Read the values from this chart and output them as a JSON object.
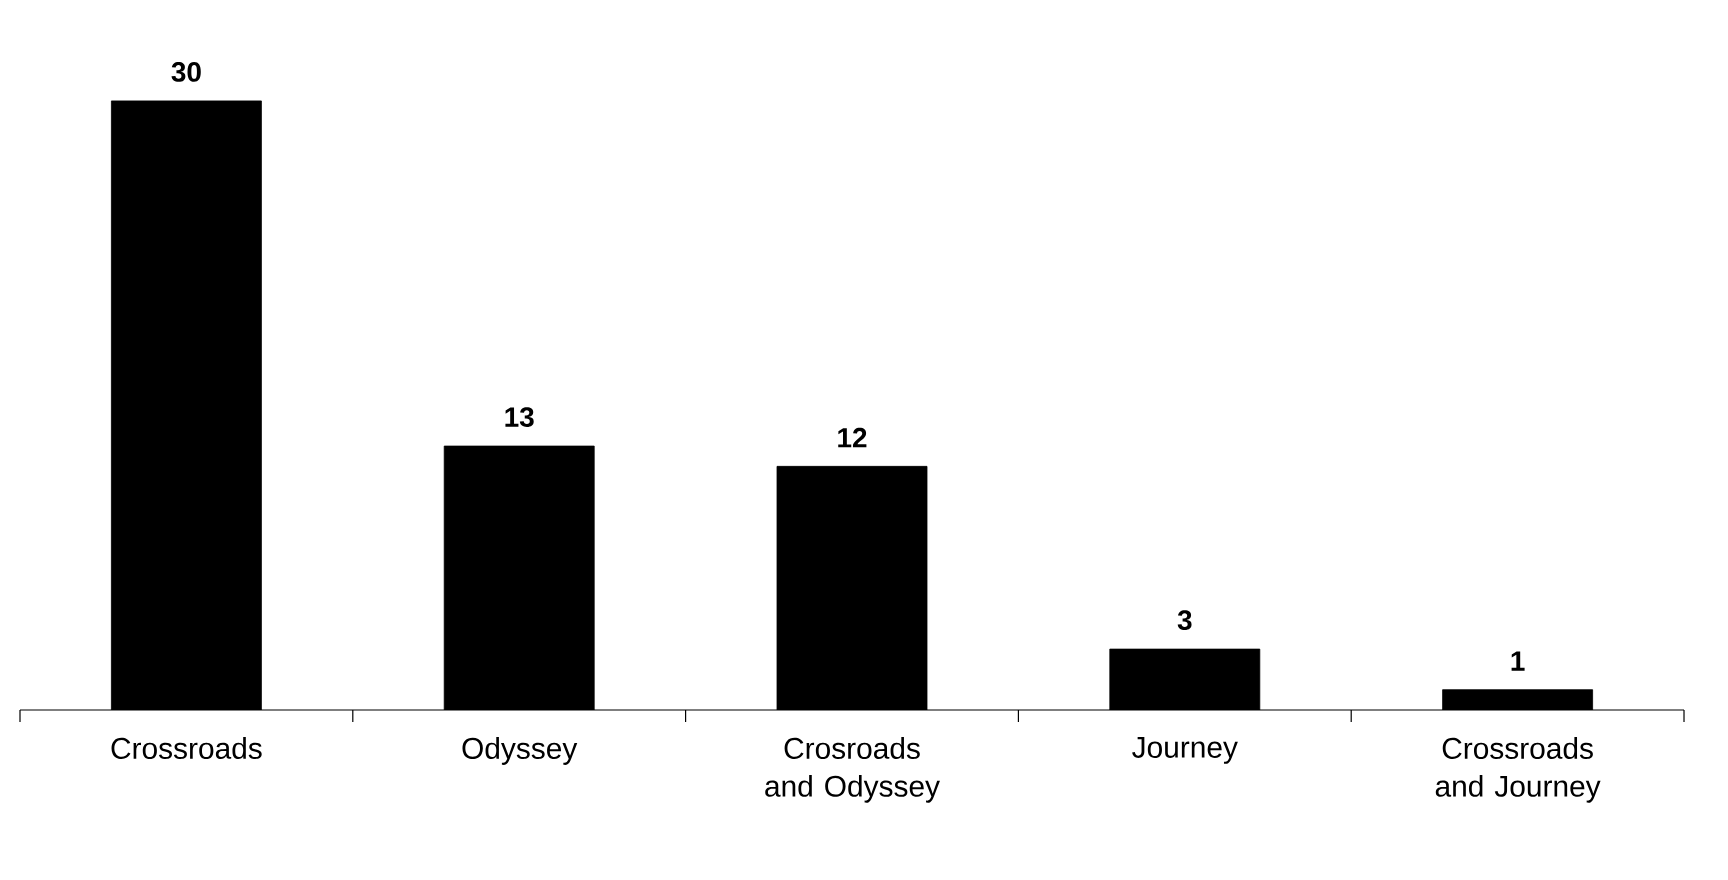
{
  "chart_data": {
    "type": "bar",
    "categories": [
      "Crossroads",
      "Odyssey",
      "Crosroads and Odyssey",
      "Journey",
      "Crossroads and Journey"
    ],
    "values": [
      30,
      13,
      12,
      3,
      1
    ],
    "color": "#000000",
    "data_labels": true
  }
}
